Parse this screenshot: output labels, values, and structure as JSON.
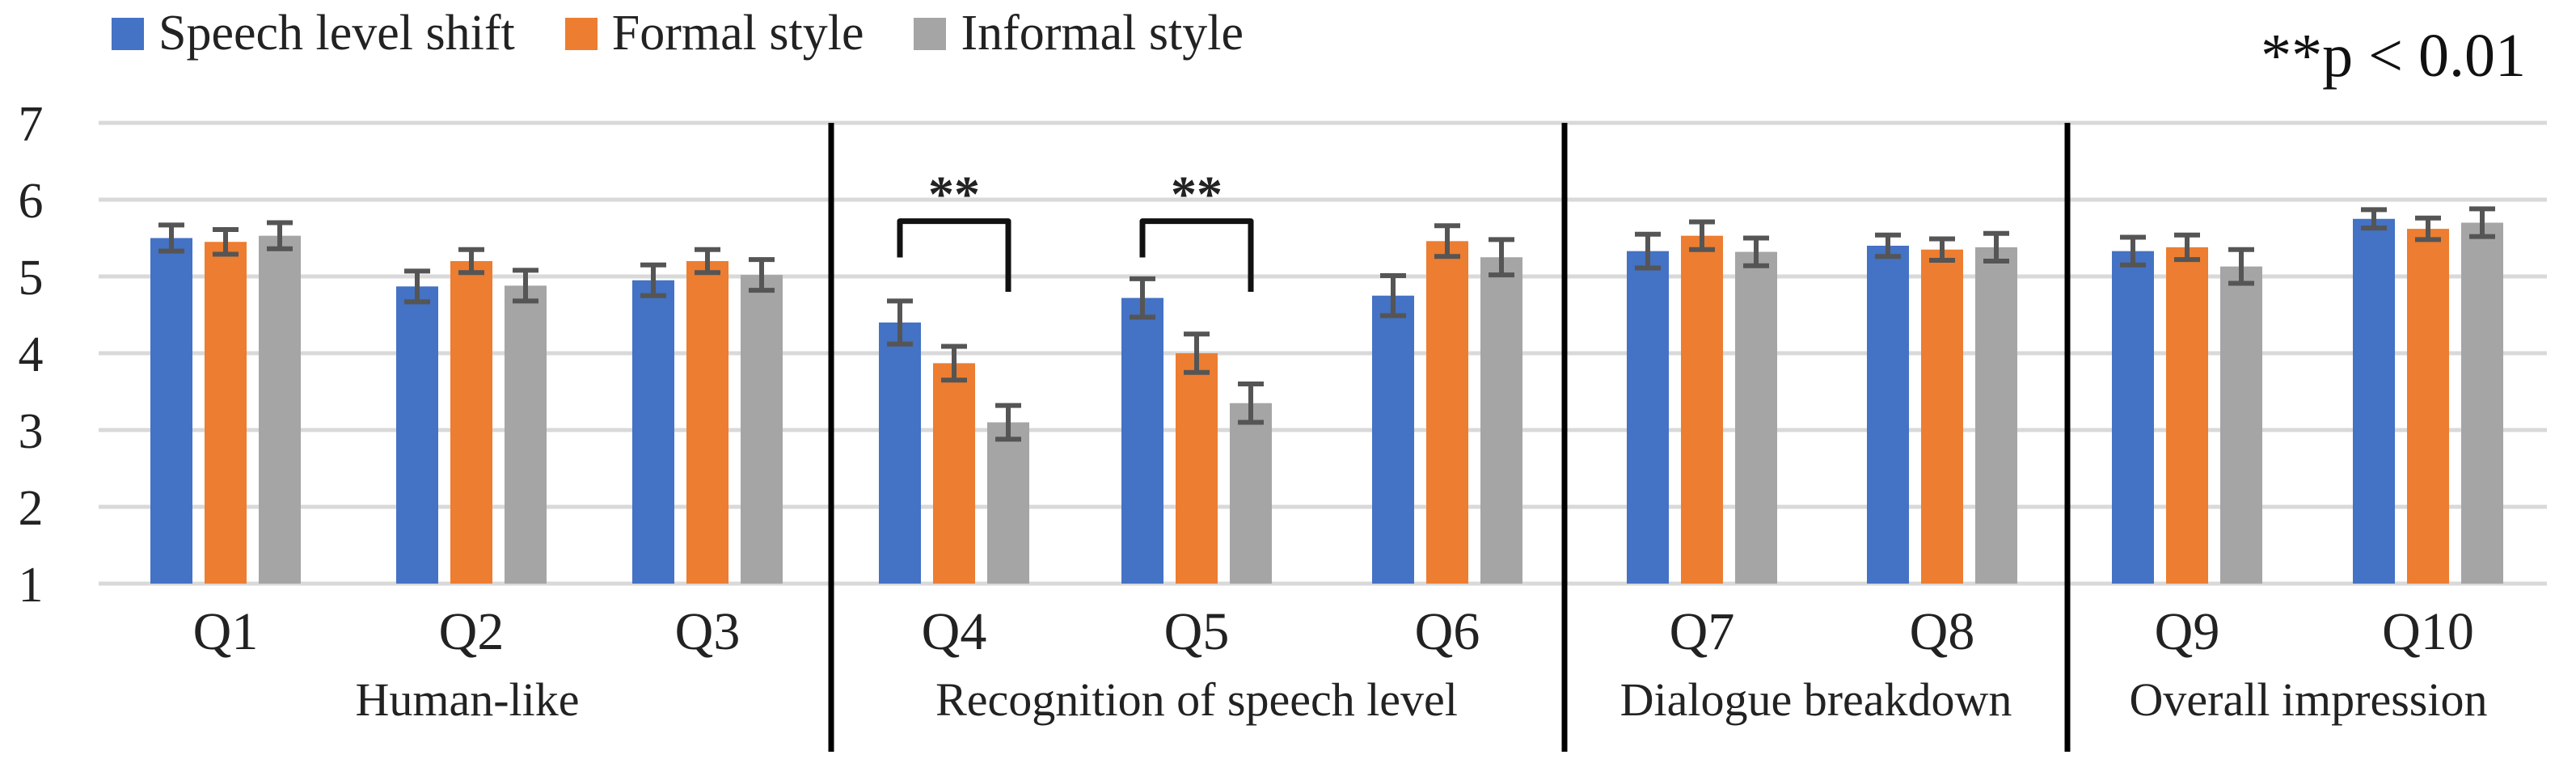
{
  "colors": {
    "series": [
      "#4472C4",
      "#ED7D31",
      "#A5A5A5"
    ],
    "error": "#555555",
    "grid": "#D9D9D9",
    "divider": "#000000"
  },
  "legend": [
    {
      "label": "Speech level shift"
    },
    {
      "label": "Formal style"
    },
    {
      "label": "Informal style"
    }
  ],
  "significance_note": "**p < 0.01",
  "chart_data": {
    "type": "bar",
    "categories": [
      "Q1",
      "Q2",
      "Q3",
      "Q4",
      "Q5",
      "Q6",
      "Q7",
      "Q8",
      "Q9",
      "Q10"
    ],
    "series": [
      {
        "name": "Speech level shift",
        "values": [
          5.5,
          4.87,
          4.95,
          4.4,
          4.72,
          4.75,
          5.33,
          5.4,
          5.33,
          5.75
        ],
        "errors": [
          0.17,
          0.2,
          0.2,
          0.28,
          0.25,
          0.26,
          0.22,
          0.14,
          0.18,
          0.12
        ]
      },
      {
        "name": "Formal style",
        "values": [
          5.45,
          5.2,
          5.2,
          3.87,
          4.0,
          5.46,
          5.53,
          5.35,
          5.38,
          5.62
        ],
        "errors": [
          0.16,
          0.15,
          0.15,
          0.22,
          0.25,
          0.2,
          0.18,
          0.14,
          0.16,
          0.14
        ]
      },
      {
        "name": "Informal style",
        "values": [
          5.53,
          4.88,
          5.02,
          3.1,
          3.35,
          5.25,
          5.32,
          5.38,
          5.13,
          5.7
        ],
        "errors": [
          0.17,
          0.2,
          0.2,
          0.22,
          0.25,
          0.23,
          0.18,
          0.18,
          0.22,
          0.18
        ]
      }
    ],
    "ylim": [
      1,
      7
    ],
    "yticks": [
      "1",
      "2",
      "3",
      "4",
      "5",
      "6",
      "7"
    ],
    "groups": [
      {
        "label": "Human-like",
        "questions": [
          "Q1",
          "Q2",
          "Q3"
        ]
      },
      {
        "label": "Recognition of speech level",
        "questions": [
          "Q4",
          "Q5",
          "Q6"
        ]
      },
      {
        "label": "Dialogue breakdown",
        "questions": [
          "Q7",
          "Q8"
        ]
      },
      {
        "label": "Overall impression",
        "questions": [
          "Q9",
          "Q10"
        ]
      }
    ],
    "significance": [
      {
        "question": "Q4",
        "from": "Speech level shift",
        "to": "Informal style",
        "label": "**"
      },
      {
        "question": "Q5",
        "from": "Speech level shift",
        "to": "Informal style",
        "label": "**"
      }
    ],
    "title": "",
    "xlabel": "",
    "ylabel": "",
    "grid": true
  }
}
